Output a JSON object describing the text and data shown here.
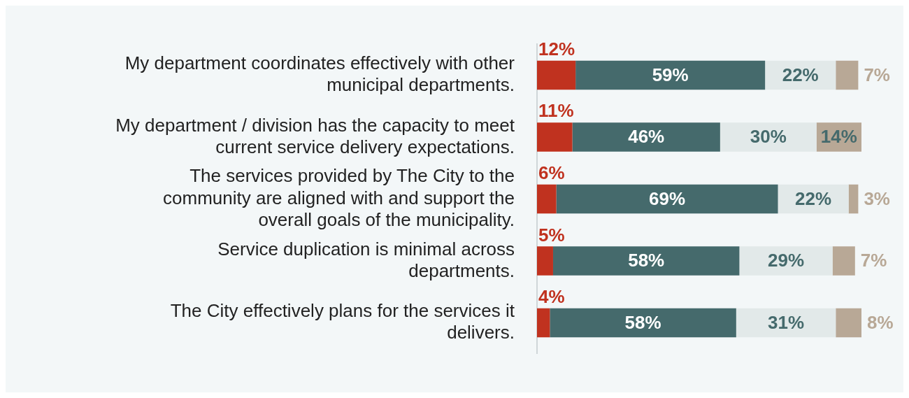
{
  "chart_data": {
    "type": "bar",
    "orientation": "horizontal",
    "stacked": true,
    "legend": false,
    "tick_labels": "y",
    "categories": [
      "My department coordinates effectively with other municipal departments.",
      "My department / division has the capacity to meet current service delivery expectations.",
      "The services provided by The City to the community are aligned with and support the overall goals of the municipality.",
      "Service duplication is minimal across departments.",
      "The City effectively plans for the services it delivers."
    ],
    "series": [
      {
        "color": "#c0321f",
        "values": [
          12,
          11,
          6,
          5,
          4
        ],
        "value_labels": [
          "12%",
          "11%",
          "6%",
          "5%",
          "4%"
        ]
      },
      {
        "color": "#456a6c",
        "values": [
          59,
          46,
          69,
          58,
          58
        ],
        "value_labels": [
          "59%",
          "46%",
          "69%",
          "58%",
          "58%"
        ]
      },
      {
        "color": "#e2e9e9",
        "values": [
          22,
          30,
          22,
          29,
          31
        ],
        "value_labels": [
          "22%",
          "30%",
          "22%",
          "29%",
          "31%"
        ]
      },
      {
        "color": "#b8a896",
        "values": [
          7,
          14,
          3,
          7,
          8
        ],
        "value_labels": [
          "7%",
          "14%",
          "3%",
          "7%",
          "8%"
        ]
      }
    ]
  }
}
